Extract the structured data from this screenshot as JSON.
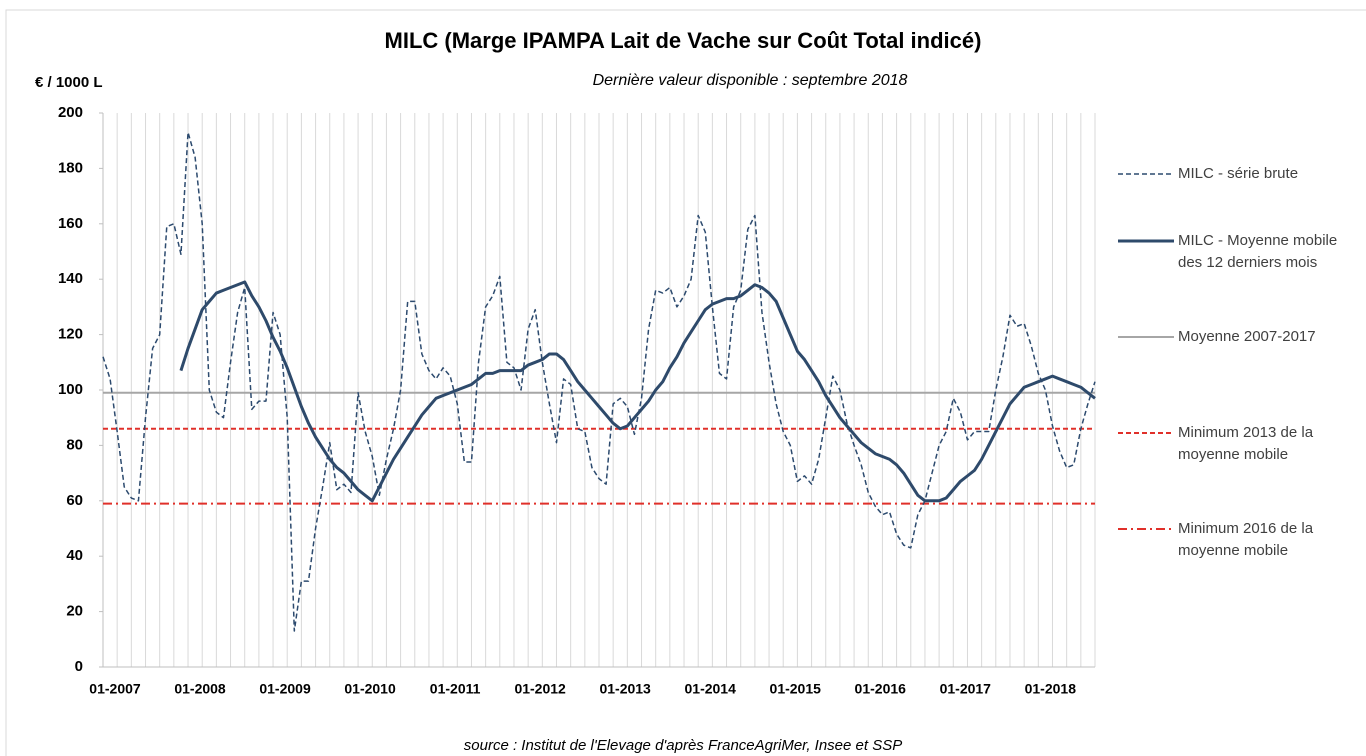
{
  "chart_data": {
    "type": "line",
    "title": "MILC (Marge IPAMPA Lait de Vache sur Coût Total indicé)",
    "subtitle": "Dernière valeur disponible : septembre 2018",
    "y_axis_label": "€ / 1000 L",
    "source": "source : Institut de l'Elevage d'après FranceAgriMer, Insee et SSP",
    "categories": [
      "01-2007",
      null,
      null,
      null,
      null,
      null,
      null,
      null,
      null,
      null,
      null,
      null,
      "01-2008",
      null,
      null,
      null,
      null,
      null,
      null,
      null,
      null,
      null,
      null,
      null,
      "01-2009",
      null,
      null,
      null,
      null,
      null,
      null,
      null,
      null,
      null,
      null,
      null,
      "01-2010",
      null,
      null,
      null,
      null,
      null,
      null,
      null,
      null,
      null,
      null,
      null,
      "01-2011",
      null,
      null,
      null,
      null,
      null,
      null,
      null,
      null,
      null,
      null,
      null,
      "01-2012",
      null,
      null,
      null,
      null,
      null,
      null,
      null,
      null,
      null,
      null,
      null,
      "01-2013",
      null,
      null,
      null,
      null,
      null,
      null,
      null,
      null,
      null,
      null,
      null,
      "01-2014",
      null,
      null,
      null,
      null,
      null,
      null,
      null,
      null,
      null,
      null,
      null,
      "01-2015",
      null,
      null,
      null,
      null,
      null,
      null,
      null,
      null,
      null,
      null,
      null,
      "01-2016",
      null,
      null,
      null,
      null,
      null,
      null,
      null,
      null,
      null,
      null,
      null,
      "01-2017",
      null,
      null,
      null,
      null,
      null,
      null,
      null,
      null,
      null,
      null,
      null,
      "01-2018",
      null,
      null,
      null,
      null,
      null,
      null,
      null,
      null
    ],
    "series": [
      {
        "name": "MILC - série brute",
        "color": "#2c4a6e",
        "dash": "dashed",
        "values": [
          112,
          104,
          85,
          65,
          61,
          60,
          90,
          115,
          120,
          159,
          160,
          149,
          193,
          184,
          160,
          100,
          92,
          90,
          110,
          128,
          137,
          93,
          96,
          96,
          128,
          120,
          90,
          13,
          31,
          31,
          50,
          65,
          81,
          64,
          66,
          63,
          99,
          85,
          76,
          62,
          75,
          86,
          100,
          132,
          132,
          113,
          107,
          104,
          108,
          105,
          95,
          74,
          74,
          110,
          130,
          134,
          141,
          110,
          108,
          100,
          122,
          129,
          110,
          95,
          81,
          104,
          102,
          86,
          85,
          72,
          68,
          66,
          95,
          97,
          94,
          84,
          97,
          122,
          136,
          135,
          137,
          130,
          134,
          140,
          163,
          157,
          130,
          106,
          104,
          130,
          136,
          158,
          163,
          128,
          110,
          95,
          85,
          80,
          67,
          69,
          66,
          75,
          90,
          105,
          100,
          88,
          80,
          73,
          63,
          58,
          55,
          56,
          48,
          44,
          43,
          55,
          60,
          70,
          80,
          85,
          97,
          92,
          82,
          85,
          85,
          85,
          100,
          112,
          127,
          123,
          124,
          116,
          106,
          100,
          87,
          78,
          72,
          73,
          86,
          95,
          103
        ]
      },
      {
        "name": "MILC - Moyenne mobile des 12 derniers mois",
        "color": "#2e4a6b",
        "dash": "solid",
        "values": [
          null,
          null,
          null,
          null,
          null,
          null,
          null,
          null,
          null,
          null,
          null,
          107,
          115,
          122,
          129,
          132,
          135,
          136,
          137,
          138,
          139,
          134,
          130,
          125,
          119,
          114,
          108,
          101,
          94,
          88,
          83,
          79,
          75,
          72,
          70,
          67,
          64,
          62,
          60,
          65,
          70,
          75,
          79,
          83,
          87,
          91,
          94,
          97,
          98,
          99,
          100,
          101,
          102,
          104,
          106,
          106,
          107,
          107,
          107,
          107,
          109,
          110,
          111,
          113,
          113,
          111,
          107,
          103,
          100,
          97,
          94,
          91,
          88,
          86,
          87,
          90,
          93,
          96,
          100,
          103,
          108,
          112,
          117,
          121,
          125,
          129,
          131,
          132,
          133,
          133,
          134,
          136,
          138,
          137,
          135,
          132,
          126,
          120,
          114,
          111,
          107,
          103,
          98,
          94,
          90,
          87,
          84,
          81,
          79,
          77,
          76,
          75,
          73,
          70,
          66,
          62,
          60,
          60,
          60,
          61,
          64,
          67,
          69,
          71,
          75,
          80,
          85,
          90,
          95,
          98,
          101,
          102,
          103,
          104,
          105,
          104,
          103,
          102,
          101,
          99,
          97
        ]
      }
    ],
    "reference_lines": [
      {
        "name": "Moyenne 2007-2017",
        "value": 99,
        "color": "#a6a6a6",
        "dash": "solid"
      },
      {
        "name": "Minimum 2013  de la moyenne mobile",
        "value": 86,
        "color": "#e0302a",
        "dash": "dashed"
      },
      {
        "name": "Minimum 2016 de la moyenne mobile",
        "value": 59,
        "color": "#e0302a",
        "dash": "dashdot"
      }
    ],
    "ylim": [
      0,
      200
    ],
    "yticks": [
      0,
      20,
      40,
      60,
      80,
      100,
      120,
      140,
      160,
      180,
      200
    ],
    "grid": "vertical",
    "legend": "right"
  }
}
